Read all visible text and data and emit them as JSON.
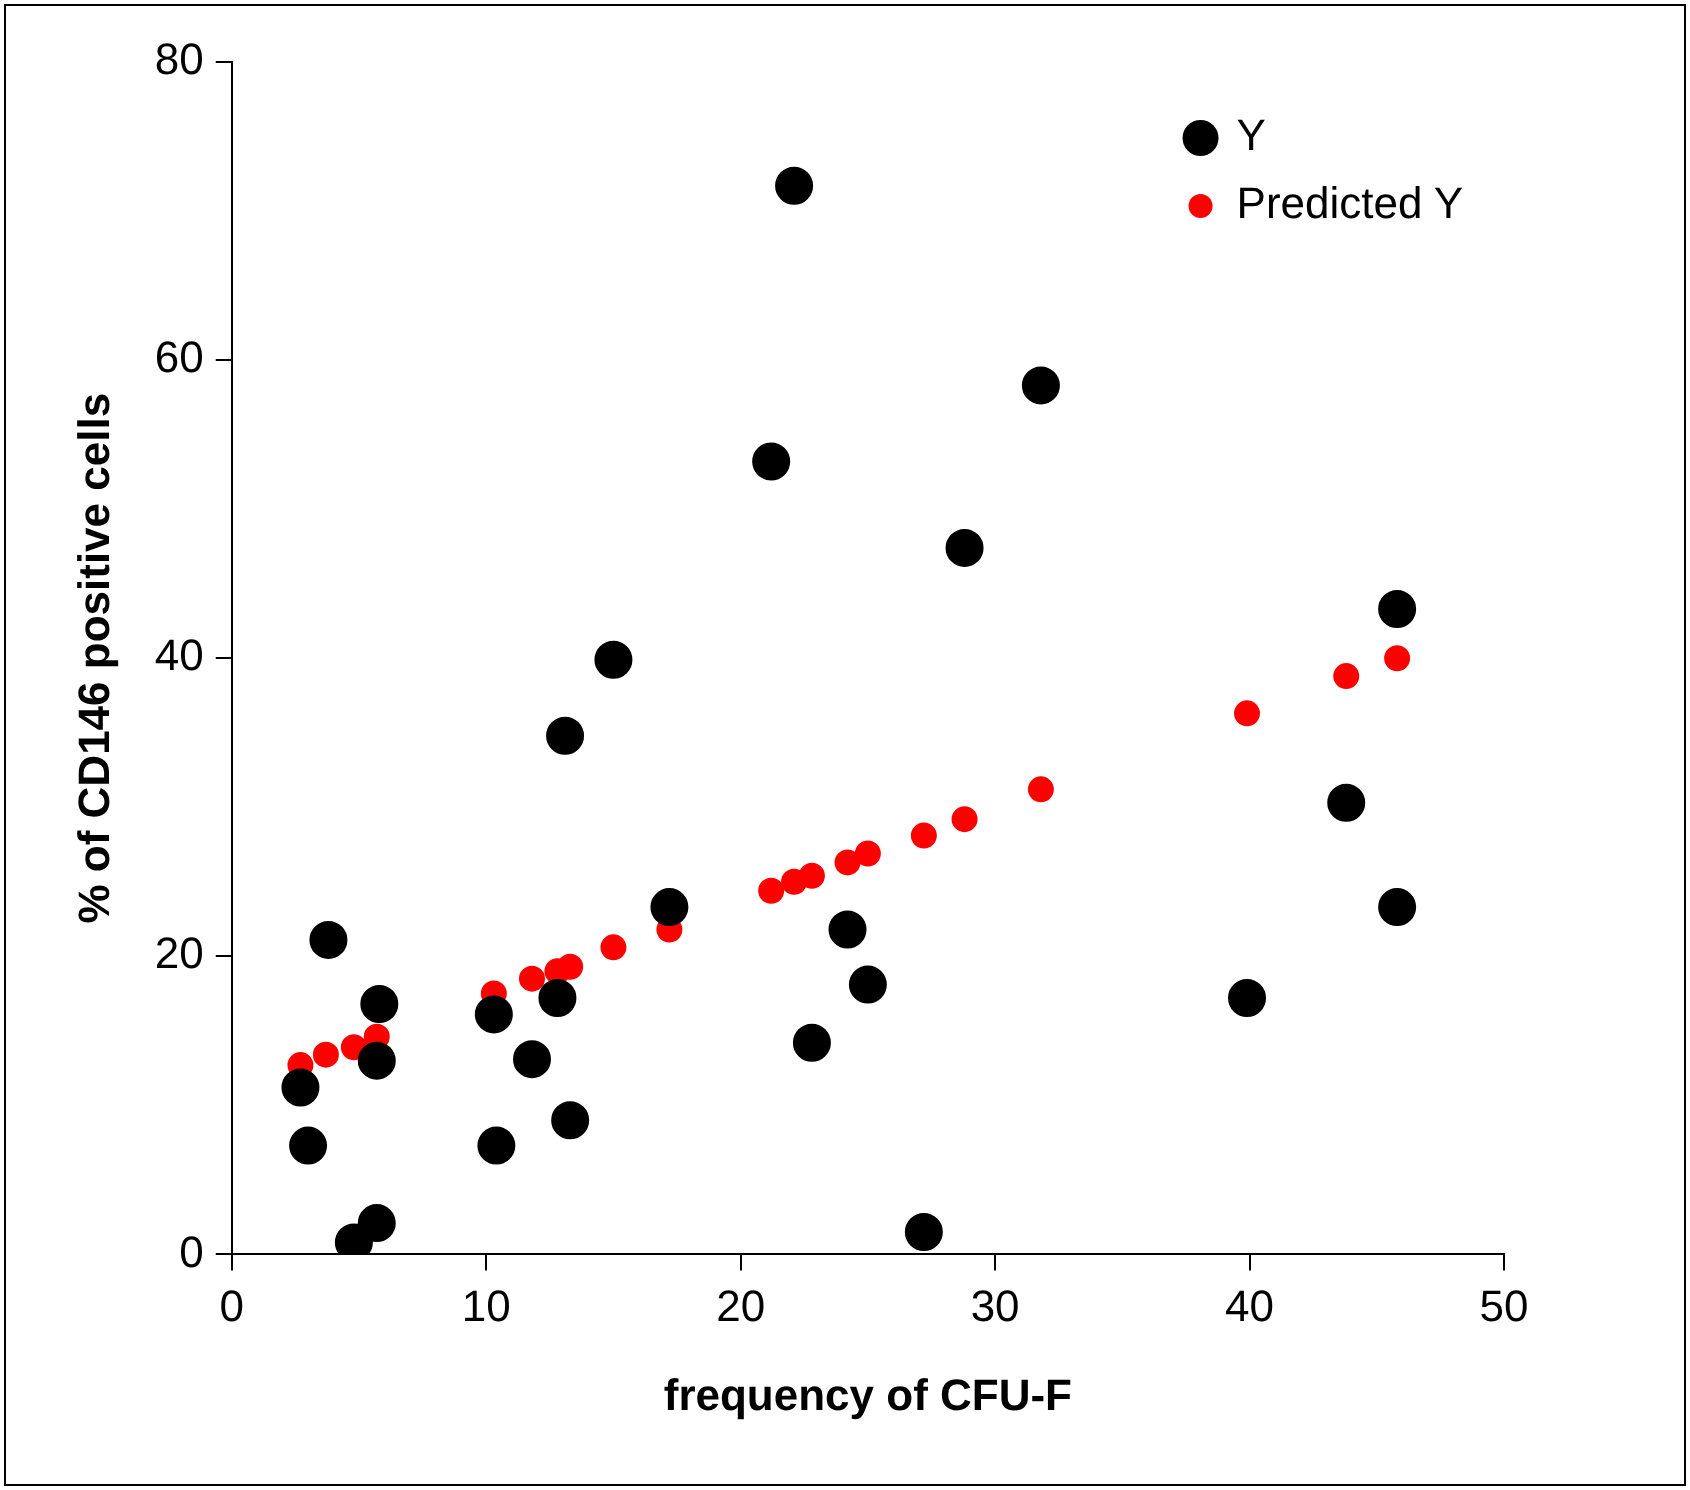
{
  "chart_data": {
    "type": "scatter",
    "xlabel": "frequency of CFU-F",
    "ylabel": "% of CD146 positive cells",
    "xlim": [
      0,
      50
    ],
    "xticks": [
      0,
      10,
      20,
      30,
      40,
      50
    ],
    "ylim": [
      0,
      80
    ],
    "yticks": [
      0,
      20,
      40,
      60,
      80
    ],
    "grid": false,
    "legend": "top right",
    "marker": "circle",
    "series": [
      {
        "name": "Y",
        "color": "#000000",
        "x": [
          2.7,
          3.0,
          3.8,
          4.8,
          5.8,
          5.7,
          5.7,
          10.3,
          10.4,
          11.8,
          12.8,
          13.1,
          13.3,
          15.0,
          17.2,
          21.2,
          22.1,
          22.8,
          24.2,
          25.0,
          27.2,
          28.8,
          31.8,
          39.9,
          43.8,
          45.8,
          45.8
        ],
        "values": [
          11.2,
          7.3,
          21.1,
          0.8,
          16.8,
          13.0,
          2.1,
          16.1,
          7.3,
          13.1,
          17.2,
          34.8,
          9.0,
          39.9,
          23.3,
          53.2,
          71.7,
          14.2,
          21.8,
          18.1,
          1.5,
          47.4,
          58.3,
          17.2,
          30.3,
          43.3,
          23.3
        ]
      },
      {
        "name": "Predicted Y",
        "color": "#ff0000",
        "x": [
          2.7,
          3.7,
          4.8,
          5.7,
          10.3,
          11.8,
          12.8,
          13.3,
          15.0,
          17.2,
          21.2,
          22.1,
          22.8,
          24.2,
          25.0,
          27.2,
          28.8,
          31.8,
          39.9,
          43.8,
          45.8
        ],
        "values": [
          12.7,
          13.4,
          13.9,
          14.6,
          17.5,
          18.5,
          19.0,
          19.3,
          20.6,
          21.8,
          24.4,
          25.0,
          25.4,
          26.3,
          26.9,
          28.1,
          29.2,
          31.2,
          36.3,
          38.8,
          40.0
        ]
      }
    ]
  }
}
